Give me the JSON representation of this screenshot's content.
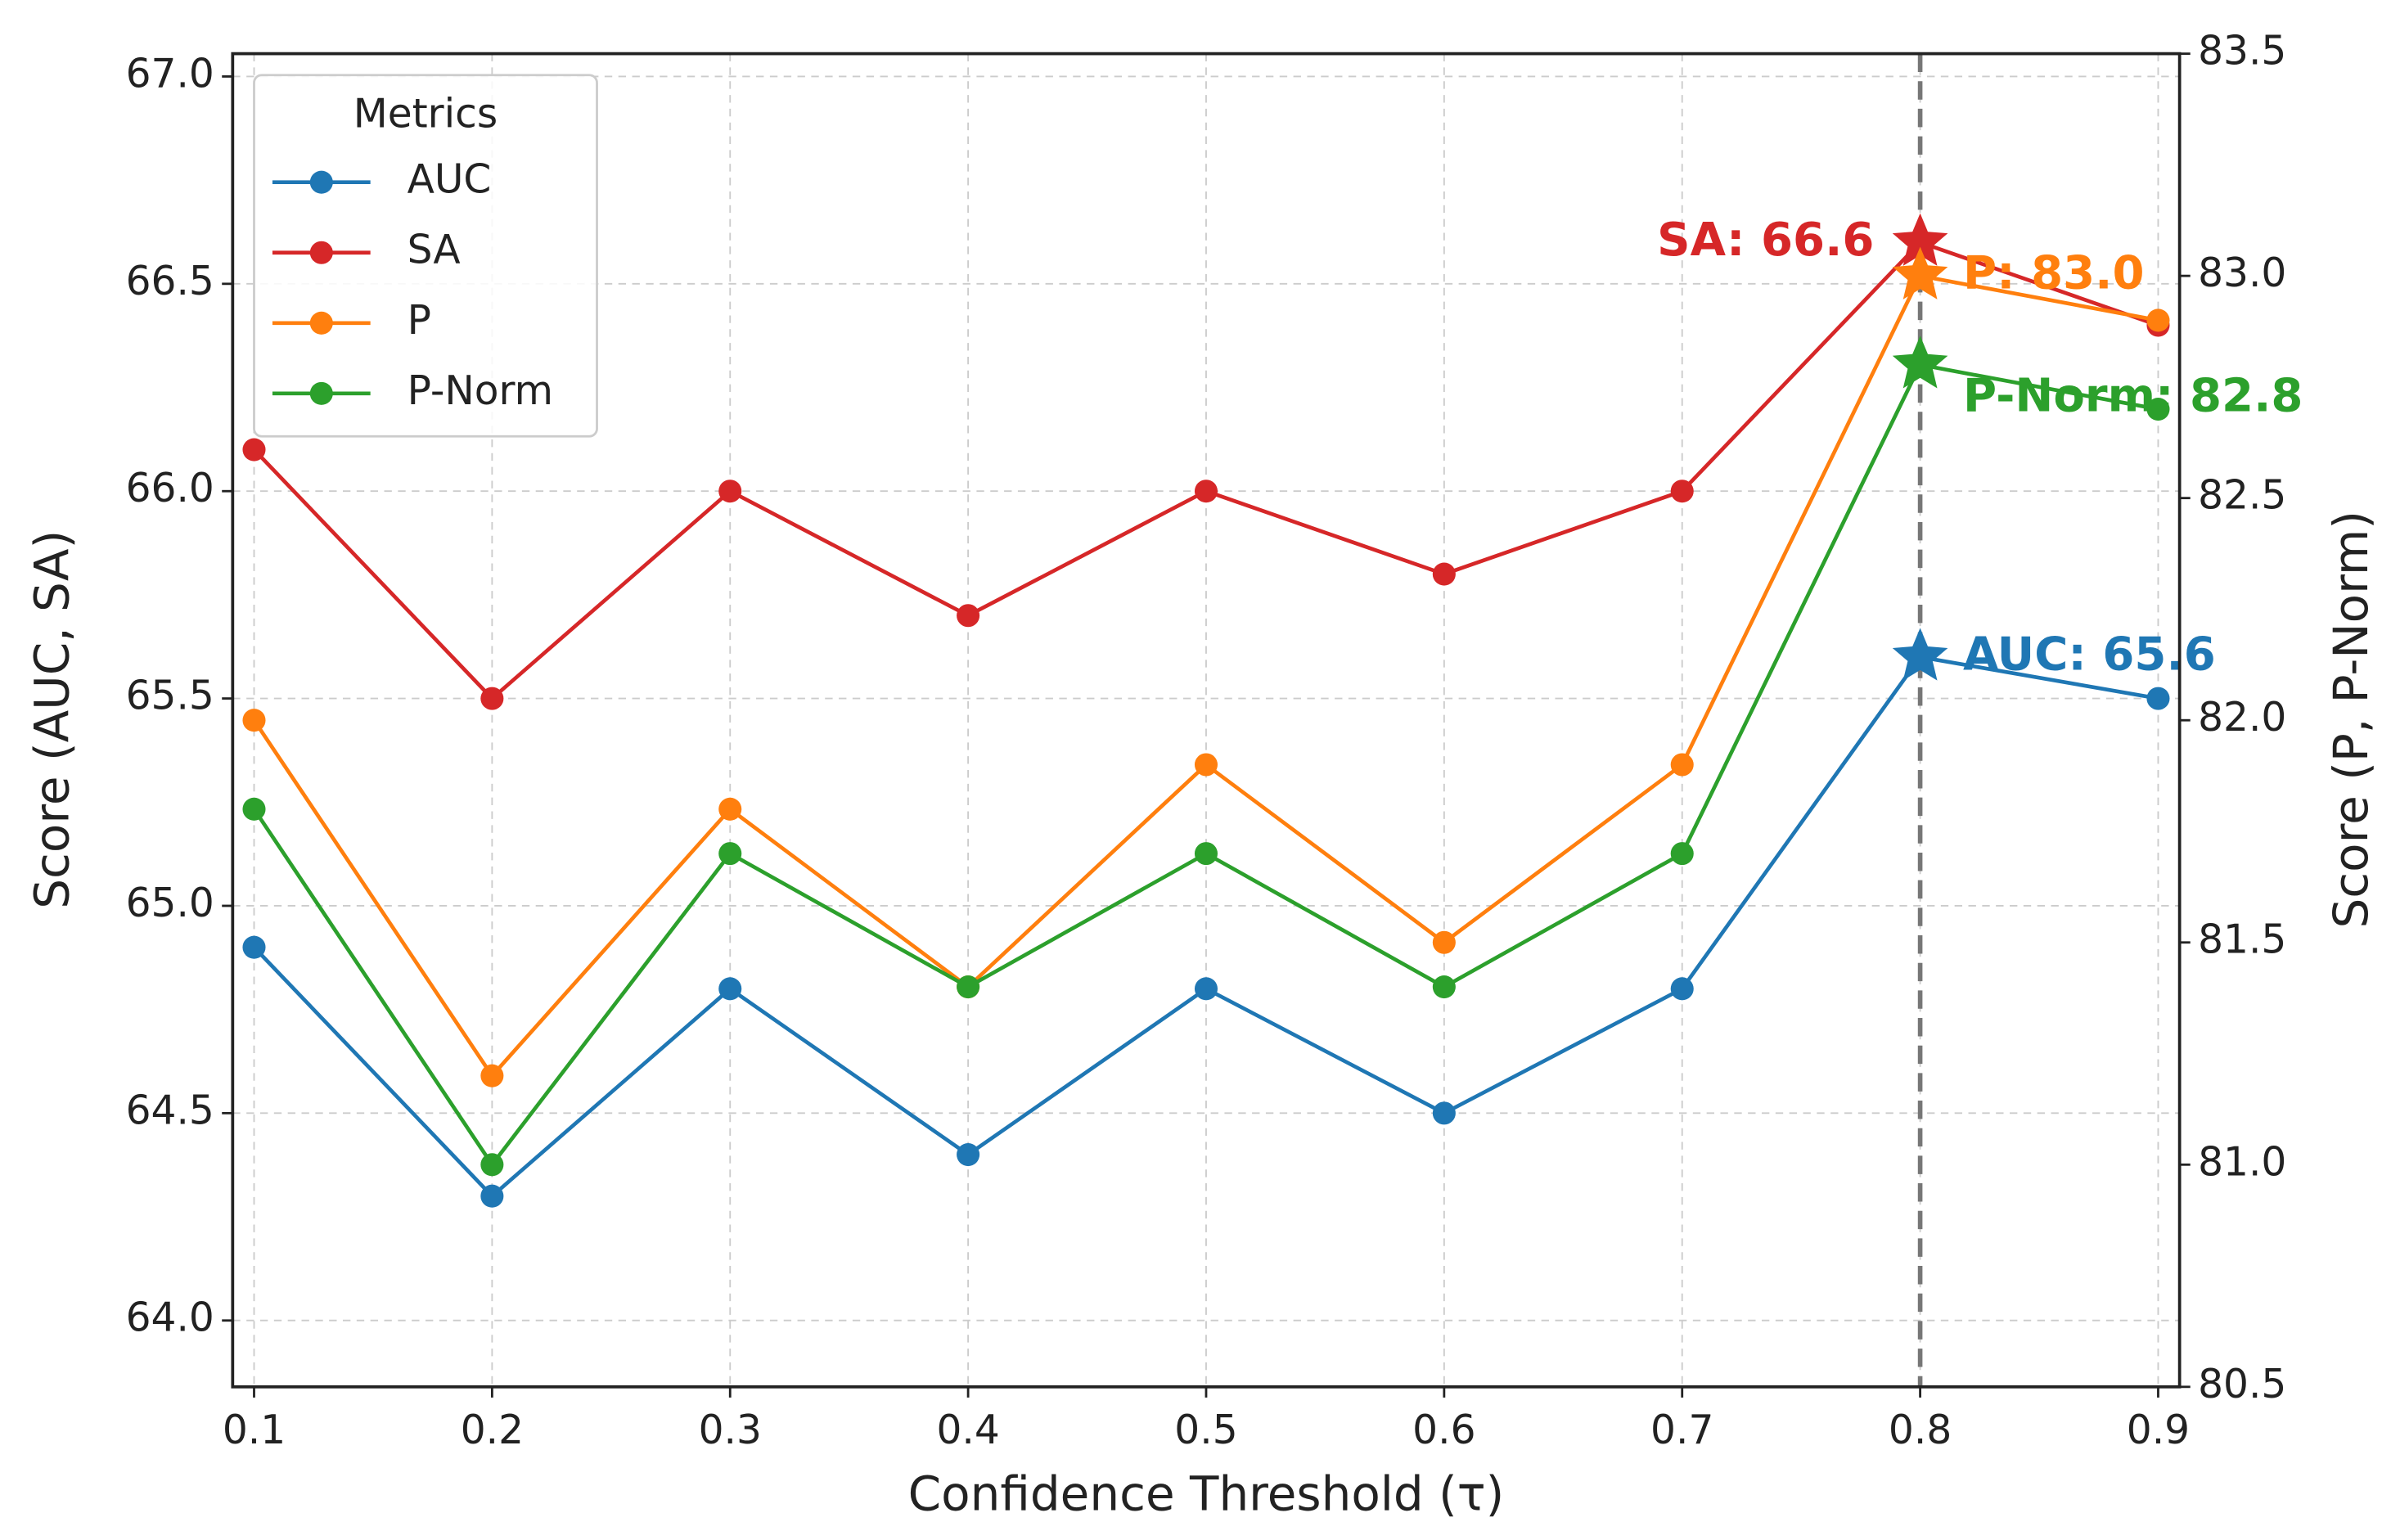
{
  "chart_data": {
    "type": "line",
    "xlabel": "Confidence Threshold (τ)",
    "ylabel": "Score (AUC, SA)",
    "y2label": "Score (P, P-Norm)",
    "x": [
      0.1,
      0.2,
      0.3,
      0.4,
      0.5,
      0.6,
      0.7,
      0.8,
      0.9
    ],
    "series": [
      {
        "name": "AUC",
        "color": "#1f77b4",
        "values": [
          64.9,
          64.3,
          64.8,
          64.4,
          64.8,
          64.5,
          64.8,
          65.6,
          65.5
        ],
        "value_labels": [
          null,
          null,
          null,
          null,
          null,
          null,
          null,
          "AUC: 65.6",
          null
        ]
      },
      {
        "name": "SA",
        "color": "#d62728",
        "values": [
          66.1,
          65.5,
          66.0,
          65.7,
          66.0,
          65.8,
          66.0,
          66.6,
          66.4
        ],
        "value_labels": [
          null,
          null,
          null,
          null,
          null,
          null,
          null,
          "SA: 66.6",
          null
        ]
      },
      {
        "name": "P",
        "color": "#ff7f0e",
        "axis": "y2",
        "values": [
          82.0,
          81.2,
          81.8,
          81.4,
          81.9,
          81.5,
          81.9,
          83.0,
          82.9
        ],
        "value_labels": [
          null,
          null,
          null,
          null,
          null,
          null,
          null,
          "P: 83.0",
          null
        ]
      },
      {
        "name": "P-Norm",
        "color": "#2ca02c",
        "axis": "y2",
        "values": [
          81.8,
          81.0,
          81.7,
          81.4,
          81.7,
          81.4,
          81.7,
          82.8,
          82.7
        ],
        "value_labels": [
          null,
          null,
          null,
          null,
          null,
          null,
          null,
          "P-Norm: 82.8",
          null
        ]
      }
    ],
    "xlim": [
      0.091,
      0.909
    ],
    "xticks": [
      0.1,
      0.2,
      0.3,
      0.4,
      0.5,
      0.6,
      0.7,
      0.8,
      0.9
    ],
    "ylim": [
      63.84,
      67.055
    ],
    "yticks": [
      {
        "value": 64,
        "label": "64.0"
      },
      64.5,
      {
        "value": 65,
        "label": "65.0"
      },
      65.5,
      {
        "value": 66,
        "label": "66.0"
      },
      66.5,
      {
        "value": 67,
        "label": "67.0"
      }
    ],
    "y2lim": [
      80.5,
      83.5
    ],
    "y2ticks": [
      80.5,
      {
        "value": 81,
        "label": "81.0"
      },
      81.5,
      {
        "value": 82,
        "label": "82.0"
      },
      82.5,
      {
        "value": 83,
        "label": "83.0"
      },
      83.5
    ],
    "vline": 0.8,
    "grid": true,
    "legend": {
      "title": "Metrics",
      "loc": "upper left"
    }
  }
}
